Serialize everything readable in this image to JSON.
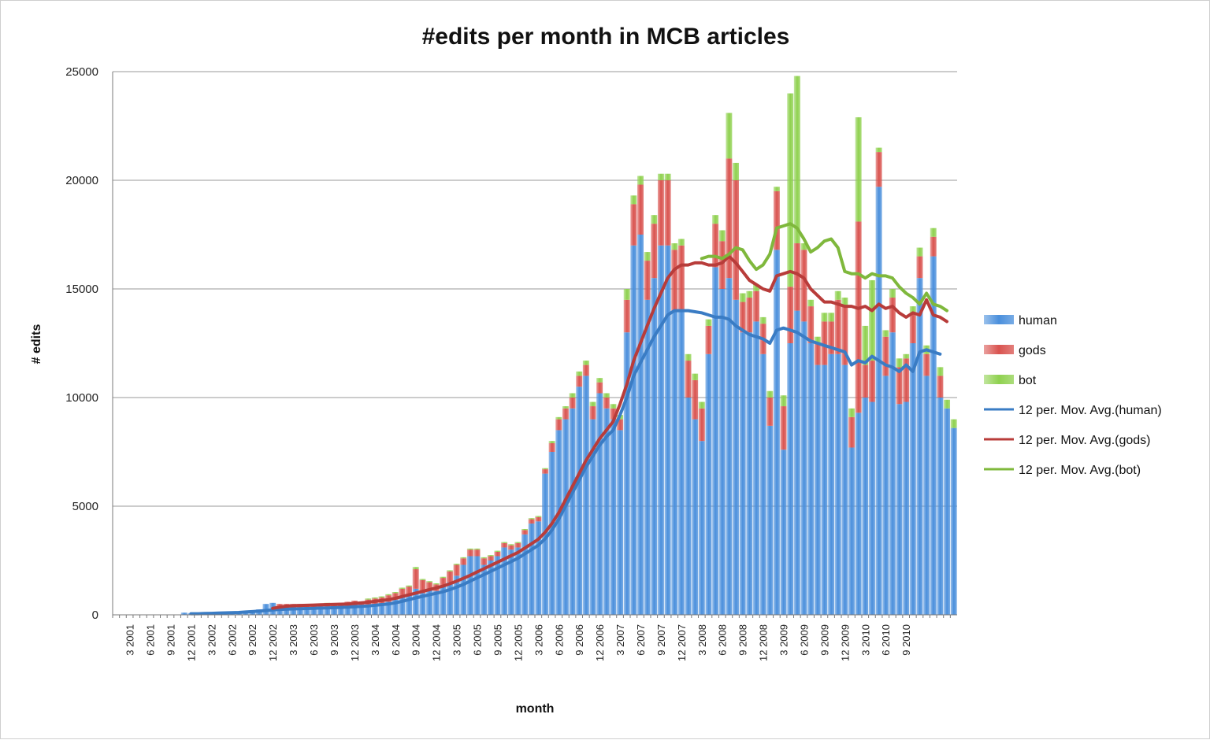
{
  "chart_data": {
    "type": "bar",
    "stacked": true,
    "title": "#edits per month in MCB articles",
    "xlabel": "month",
    "ylabel": "# edits",
    "ylim": [
      0,
      25000
    ],
    "yticks": [
      0,
      5000,
      10000,
      15000,
      20000,
      25000
    ],
    "grid": true,
    "legend_position": "right",
    "start": {
      "year": 2001,
      "month": 1
    },
    "xtick_labels": [
      "3 2001",
      "6 2001",
      "9 2001",
      "12 2001",
      "3 2002",
      "6 2002",
      "9 2002",
      "12 2002",
      "3 2003",
      "6 2003",
      "9 2003",
      "12 2003",
      "3 2004",
      "6 2004",
      "9 2004",
      "12 2004",
      "3 2005",
      "6 2005",
      "9 2005",
      "12 2005",
      "3 2006",
      "6 2006",
      "9 2006",
      "12 2006",
      "3 2007",
      "6 2007",
      "9 2007",
      "12 2007",
      "3 2008",
      "6 2008",
      "9 2008",
      "12 2008",
      "3 2009",
      "6 2009",
      "9 2009",
      "12 2009",
      "3 2010",
      "6 2010",
      "9 2010"
    ],
    "series": [
      {
        "name": "human",
        "kind": "bar",
        "color": "#4a8fdc",
        "values": [
          0,
          0,
          0,
          0,
          0,
          0,
          0,
          0,
          0,
          0,
          100,
          80,
          0,
          0,
          50,
          80,
          100,
          120,
          150,
          180,
          200,
          250,
          500,
          550,
          300,
          200,
          200,
          250,
          300,
          300,
          300,
          350,
          300,
          350,
          400,
          450,
          400,
          400,
          450,
          500,
          600,
          700,
          800,
          900,
          1200,
          1000,
          1200,
          1100,
          1300,
          1500,
          1800,
          2300,
          2700,
          2700,
          2300,
          2500,
          2700,
          3100,
          3000,
          3100,
          3700,
          4200,
          4300,
          6500,
          7500,
          8500,
          9000,
          9500,
          10500,
          11000,
          9000,
          10200,
          9500,
          9000,
          8500,
          13000,
          17000,
          17500,
          14500,
          15500,
          17000,
          17000,
          14000,
          14000,
          10000,
          9000,
          8000,
          12000,
          16000,
          15000,
          15500,
          14500,
          13000,
          13000,
          13500,
          12000,
          8700,
          16800,
          7600,
          12500,
          14000,
          13500,
          12500,
          11500,
          11500,
          12000,
          12000,
          11500,
          7700,
          9300,
          10000,
          9800,
          19700,
          11000,
          13000,
          9700,
          9800,
          12500,
          15500,
          11000,
          16500,
          10000,
          9500,
          8600
        ]
      },
      {
        "name": "gods",
        "kind": "bar",
        "color": "#d9534f",
        "values": [
          0,
          0,
          0,
          0,
          0,
          0,
          0,
          0,
          0,
          0,
          0,
          0,
          0,
          0,
          0,
          0,
          0,
          0,
          0,
          0,
          0,
          0,
          0,
          0,
          200,
          300,
          300,
          250,
          200,
          150,
          150,
          150,
          200,
          200,
          200,
          200,
          200,
          300,
          300,
          300,
          300,
          300,
          400,
          400,
          900,
          600,
          300,
          300,
          400,
          500,
          500,
          300,
          300,
          300,
          300,
          200,
          200,
          200,
          200,
          200,
          200,
          200,
          200,
          200,
          400,
          500,
          500,
          500,
          500,
          500,
          600,
          500,
          500,
          500,
          500,
          1500,
          1900,
          2300,
          1800,
          2500,
          3000,
          3000,
          2800,
          3000,
          1700,
          1800,
          1500,
          1300,
          2000,
          2200,
          5500,
          5500,
          1400,
          1600,
          1400,
          1400,
          1300,
          2700,
          2000,
          2600,
          3100,
          3300,
          1700,
          1000,
          2000,
          1500,
          2500,
          2700,
          1400,
          8800,
          1500,
          1900,
          1600,
          1800,
          1600,
          1700,
          2000,
          1400,
          1000,
          1000,
          900,
          1000
        ]
      },
      {
        "name": "bot",
        "kind": "bar",
        "color": "#8fd14f",
        "values": [
          0,
          0,
          0,
          0,
          0,
          0,
          0,
          0,
          0,
          0,
          0,
          0,
          0,
          0,
          0,
          0,
          0,
          0,
          0,
          0,
          0,
          0,
          0,
          0,
          0,
          0,
          0,
          0,
          0,
          50,
          50,
          50,
          0,
          0,
          0,
          0,
          0,
          50,
          50,
          50,
          50,
          50,
          50,
          50,
          100,
          50,
          50,
          50,
          50,
          50,
          50,
          50,
          50,
          50,
          50,
          50,
          50,
          50,
          50,
          50,
          50,
          50,
          50,
          50,
          100,
          100,
          100,
          200,
          200,
          200,
          200,
          200,
          200,
          200,
          200,
          500,
          400,
          400,
          400,
          400,
          300,
          300,
          300,
          300,
          300,
          300,
          300,
          300,
          400,
          500,
          2100,
          800,
          400,
          300,
          300,
          300,
          300,
          200,
          500,
          8900,
          7700,
          300,
          300,
          300,
          400,
          400,
          400,
          400,
          400,
          4800,
          1800,
          3700,
          200,
          300,
          400,
          400,
          200,
          300,
          400,
          400,
          400,
          400,
          400,
          400,
          400,
          400,
          300,
          300,
          300
        ]
      },
      {
        "name": "12 per. Mov. Avg.(human)",
        "kind": "line",
        "color": "#3a7cc4",
        "values": [
          null,
          null,
          null,
          null,
          null,
          null,
          null,
          null,
          null,
          null,
          null,
          50,
          50,
          60,
          70,
          80,
          90,
          100,
          110,
          130,
          150,
          170,
          200,
          230,
          250,
          260,
          270,
          280,
          290,
          300,
          310,
          320,
          330,
          340,
          350,
          370,
          390,
          410,
          440,
          470,
          500,
          550,
          620,
          700,
          780,
          850,
          920,
          990,
          1060,
          1160,
          1270,
          1400,
          1550,
          1700,
          1850,
          2000,
          2150,
          2300,
          2450,
          2600,
          2800,
          3000,
          3200,
          3500,
          3900,
          4400,
          5000,
          5600,
          6200,
          6800,
          7300,
          7800,
          8200,
          8500,
          9200,
          10000,
          11000,
          11600,
          12200,
          12800,
          13300,
          13800,
          14000,
          14000,
          14000,
          13950,
          13900,
          13800,
          13700,
          13700,
          13600,
          13300,
          13100,
          12900,
          12800,
          12700,
          12500,
          13100,
          13200,
          13100,
          13000,
          12800,
          12600,
          12500,
          12400,
          12300,
          12200,
          12100,
          11500,
          11700,
          11600,
          11900,
          11700,
          11500,
          11400,
          11200,
          11500,
          11200,
          12100,
          12200,
          12100,
          12000
        ]
      },
      {
        "name": "12 per. Mov. Avg.(gods)",
        "kind": "line",
        "color": "#b83c3a",
        "values": [
          null,
          null,
          null,
          null,
          null,
          null,
          null,
          null,
          null,
          null,
          null,
          null,
          null,
          null,
          null,
          null,
          null,
          null,
          null,
          null,
          null,
          null,
          null,
          300,
          350,
          400,
          420,
          430,
          440,
          450,
          460,
          470,
          480,
          490,
          500,
          520,
          550,
          580,
          620,
          660,
          700,
          760,
          840,
          920,
          1000,
          1080,
          1160,
          1240,
          1320,
          1430,
          1550,
          1680,
          1820,
          1970,
          2120,
          2270,
          2420,
          2570,
          2720,
          2870,
          3070,
          3270,
          3480,
          3800,
          4200,
          4700,
          5300,
          5900,
          6500,
          7100,
          7600,
          8100,
          8500,
          8900,
          9700,
          10600,
          11700,
          12500,
          13300,
          14100,
          14800,
          15500,
          15900,
          16100,
          16100,
          16200,
          16200,
          16100,
          16100,
          16200,
          16500,
          16200,
          15800,
          15400,
          15200,
          15000,
          14900,
          15600,
          15700,
          15800,
          15700,
          15500,
          15000,
          14700,
          14400,
          14400,
          14300,
          14200,
          14200,
          14100,
          14200,
          14000,
          14300,
          14100,
          14200,
          13900,
          13700,
          13900,
          13800,
          14500,
          13800,
          13700,
          13500
        ]
      },
      {
        "name": "12 per. Mov. Avg.(bot)",
        "kind": "line",
        "color": "#7fb83c",
        "values": [
          null,
          null,
          null,
          null,
          null,
          null,
          null,
          null,
          null,
          null,
          null,
          null,
          null,
          null,
          null,
          null,
          null,
          null,
          null,
          null,
          null,
          null,
          null,
          null,
          null,
          null,
          null,
          null,
          null,
          null,
          null,
          null,
          null,
          null,
          null,
          null,
          null,
          null,
          null,
          null,
          null,
          null,
          null,
          null,
          null,
          null,
          null,
          null,
          null,
          null,
          null,
          null,
          null,
          null,
          null,
          null,
          null,
          null,
          null,
          null,
          null,
          null,
          null,
          null,
          null,
          null,
          null,
          null,
          null,
          null,
          null,
          null,
          null,
          null,
          null,
          null,
          null,
          null,
          null,
          null,
          null,
          null,
          null,
          null,
          null,
          null,
          16400,
          16500,
          16500,
          16400,
          16600,
          16900,
          16800,
          16300,
          15900,
          16100,
          16600,
          17800,
          17900,
          18000,
          17800,
          17300,
          16700,
          16900,
          17200,
          17300,
          16900,
          15800,
          15700,
          15700,
          15500,
          15700,
          15600,
          15600,
          15500,
          15100,
          14800,
          14600,
          14300,
          14800,
          14300,
          14200,
          14000
        ]
      }
    ]
  }
}
